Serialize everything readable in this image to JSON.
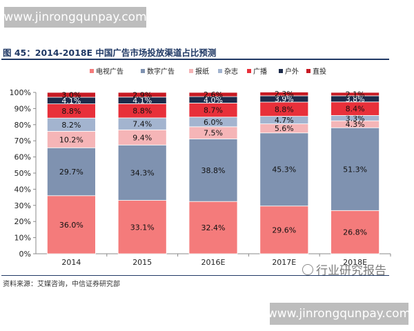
{
  "watermark_top": "www.jinrongqunpay.com",
  "watermark_bottom": "www.jinrongqunpay.com",
  "figure_title": "图 45：2014-2018E 中国广告市场投放渠道占比预测",
  "source_note": "资料来源：艾媒咨询，中信证券研究部",
  "logo_text": "行业研究报告",
  "colors": {
    "电视广告": "#f47b7b",
    "数字广告": "#7f92b0",
    "报纸": "#f5b5b7",
    "杂志": "#a3b4cf",
    "广播": "#e8303a",
    "户外": "#1c2b4a",
    "直投": "#c71a23"
  },
  "chart_data": {
    "type": "bar",
    "stacked": true,
    "title": "",
    "xlabel": "",
    "ylabel": "",
    "ylim": [
      0,
      100
    ],
    "yticks": [
      "0%",
      "10%",
      "20%",
      "30%",
      "40%",
      "50%",
      "60%",
      "70%",
      "80%",
      "90%",
      "100%"
    ],
    "legend_position": "top",
    "categories": [
      "2014",
      "2015",
      "2016E",
      "2017E",
      "2018E"
    ],
    "series": [
      {
        "name": "电视广告",
        "values": [
          36.0,
          33.1,
          32.4,
          29.6,
          26.8
        ],
        "labels": [
          "36.0%",
          "33.1%",
          "32.4%",
          "29.6%",
          "26.8%"
        ]
      },
      {
        "name": "数字广告",
        "values": [
          29.7,
          34.3,
          38.8,
          45.3,
          51.3
        ],
        "labels": [
          "29.7%",
          "34.3%",
          "38.8%",
          "45.3%",
          "51.3%"
        ]
      },
      {
        "name": "报纸",
        "values": [
          10.2,
          9.4,
          7.5,
          5.6,
          4.3
        ],
        "labels": [
          "10.2%",
          "9.4%",
          "7.5%",
          "5.6%",
          "4.3%"
        ]
      },
      {
        "name": "杂志",
        "values": [
          8.2,
          7.4,
          6.0,
          4.7,
          3.3
        ],
        "labels": [
          "8.2%",
          "7.4%",
          "6.0%",
          "4.7%",
          "3.3%"
        ]
      },
      {
        "name": "广播",
        "values": [
          8.8,
          8.8,
          8.7,
          8.8,
          8.4
        ],
        "labels": [
          "8.8%",
          "8.8%",
          "8.7%",
          "8.8%",
          "8.4%"
        ]
      },
      {
        "name": "户外",
        "values": [
          4.1,
          4.1,
          4.0,
          3.9,
          3.8
        ],
        "labels": [
          "4.1%",
          "4.1%",
          "4.0%",
          "3.9%",
          "3.8%"
        ]
      },
      {
        "name": "直投",
        "values": [
          3.0,
          2.9,
          2.6,
          2.3,
          2.1
        ],
        "labels": [
          "3.0%",
          "2.9%",
          "2.6%",
          "2.3%",
          "2.1%"
        ]
      }
    ]
  }
}
